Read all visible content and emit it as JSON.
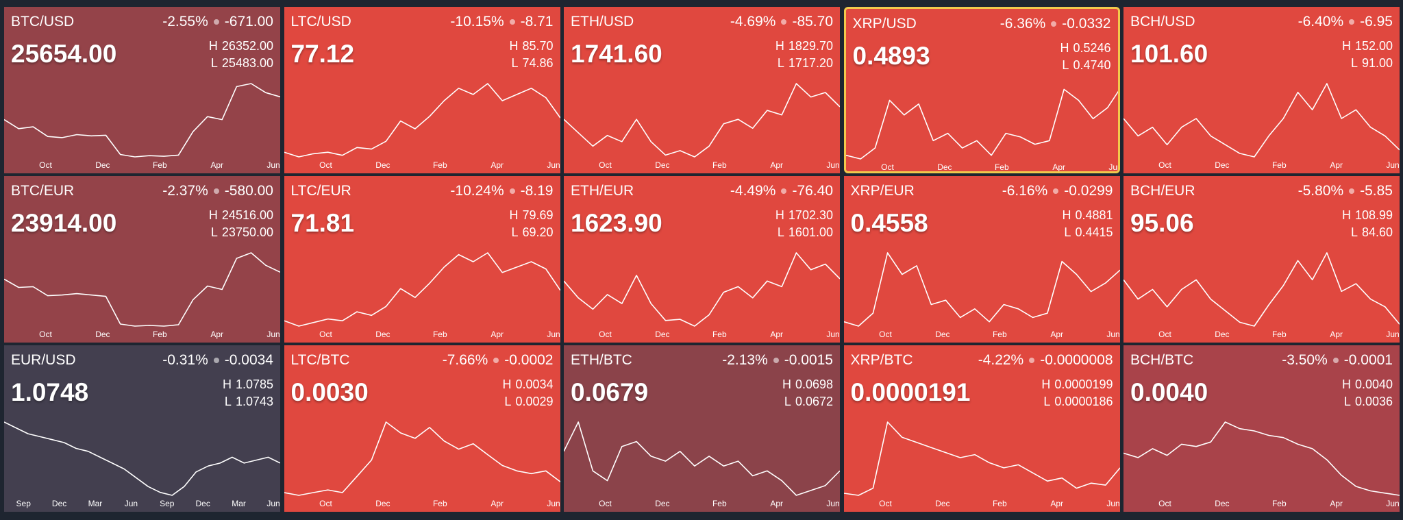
{
  "labels": {
    "high": "H",
    "low": "L"
  },
  "selected_index": 3,
  "tiles": [
    {
      "pair": "BTC/USD",
      "change_pct": "-2.55%",
      "change": "-671.00",
      "price": "25654.00",
      "high": "26352.00",
      "low": "25483.00",
      "color": "#944349",
      "months": [
        "Oct",
        "Dec",
        "Feb",
        "Apr",
        "Jun"
      ],
      "line": [
        23000,
        21500,
        21800,
        20200,
        20000,
        20500,
        20300,
        20400,
        17200,
        16800,
        17000,
        16900,
        17100,
        21000,
        23500,
        23000,
        28500,
        29000,
        27500,
        26800
      ]
    },
    {
      "pair": "LTC/USD",
      "change_pct": "-10.15%",
      "change": "-8.71",
      "price": "77.12",
      "high": "85.70",
      "low": "74.86",
      "color": "#e0483f",
      "months": [
        "Oct",
        "Dec",
        "Feb",
        "Apr",
        "Jun"
      ],
      "line": [
        55,
        52,
        54,
        55,
        53,
        58,
        57,
        62,
        75,
        70,
        78,
        88,
        96,
        92,
        99,
        88,
        92,
        96,
        90,
        77
      ]
    },
    {
      "pair": "ETH/USD",
      "change_pct": "-4.69%",
      "change": "-85.70",
      "price": "1741.60",
      "high": "1829.70",
      "low": "1717.20",
      "color": "#e0483f",
      "months": [
        "Oct",
        "Dec",
        "Feb",
        "Apr",
        "Jun"
      ],
      "line": [
        1600,
        1450,
        1300,
        1420,
        1350,
        1600,
        1350,
        1200,
        1250,
        1180,
        1300,
        1550,
        1600,
        1500,
        1700,
        1650,
        2000,
        1850,
        1900,
        1740
      ]
    },
    {
      "pair": "XRP/USD",
      "change_pct": "-6.36%",
      "change": "-0.0332",
      "price": "0.4893",
      "high": "0.5246",
      "low": "0.4740",
      "color": "#e0483f",
      "months": [
        "Oct",
        "Dec",
        "Feb",
        "Apr",
        "Jun"
      ],
      "line": [
        0.34,
        0.33,
        0.36,
        0.49,
        0.45,
        0.48,
        0.38,
        0.4,
        0.36,
        0.38,
        0.34,
        0.4,
        0.39,
        0.37,
        0.38,
        0.52,
        0.49,
        0.44,
        0.47,
        0.53
      ]
    },
    {
      "pair": "BCH/USD",
      "change_pct": "-6.40%",
      "change": "-6.95",
      "price": "101.60",
      "high": "152.00",
      "low": "91.00",
      "color": "#e0483f",
      "months": [
        "Oct",
        "Dec",
        "Feb",
        "Apr",
        "Jun"
      ],
      "line": [
        120,
        110,
        115,
        105,
        115,
        120,
        110,
        105,
        100,
        98,
        110,
        120,
        135,
        125,
        140,
        120,
        125,
        115,
        110,
        102
      ]
    },
    {
      "pair": "BTC/EUR",
      "change_pct": "-2.37%",
      "change": "-580.00",
      "price": "23914.00",
      "high": "24516.00",
      "low": "23750.00",
      "color": "#944349",
      "months": [
        "Oct",
        "Dec",
        "Feb",
        "Apr",
        "Jun"
      ],
      "line": [
        23000,
        21800,
        21900,
        20600,
        20700,
        20900,
        20700,
        20500,
        16500,
        16200,
        16300,
        16200,
        16400,
        20000,
        22000,
        21500,
        26000,
        26800,
        25000,
        24000
      ]
    },
    {
      "pair": "LTC/EUR",
      "change_pct": "-10.24%",
      "change": "-8.19",
      "price": "71.81",
      "high": "79.69",
      "low": "69.20",
      "color": "#e0483f",
      "months": [
        "Oct",
        "Dec",
        "Feb",
        "Apr",
        "Jun"
      ],
      "line": [
        55,
        52,
        54,
        56,
        55,
        60,
        58,
        63,
        73,
        68,
        76,
        85,
        92,
        88,
        93,
        82,
        85,
        88,
        84,
        72
      ]
    },
    {
      "pair": "ETH/EUR",
      "change_pct": "-4.49%",
      "change": "-76.40",
      "price": "1623.90",
      "high": "1702.30",
      "low": "1601.00",
      "color": "#e0483f",
      "months": [
        "Oct",
        "Dec",
        "Feb",
        "Apr",
        "Jun"
      ],
      "line": [
        1600,
        1450,
        1350,
        1480,
        1400,
        1650,
        1400,
        1250,
        1260,
        1200,
        1300,
        1500,
        1550,
        1450,
        1600,
        1550,
        1850,
        1700,
        1750,
        1620
      ]
    },
    {
      "pair": "XRP/EUR",
      "change_pct": "-6.16%",
      "change": "-0.0299",
      "price": "0.4558",
      "high": "0.4881",
      "low": "0.4415",
      "color": "#e0483f",
      "months": [
        "Oct",
        "Dec",
        "Feb",
        "Apr",
        "Jun"
      ],
      "line": [
        0.34,
        0.33,
        0.36,
        0.5,
        0.45,
        0.47,
        0.38,
        0.39,
        0.35,
        0.37,
        0.34,
        0.38,
        0.37,
        0.35,
        0.36,
        0.48,
        0.45,
        0.41,
        0.43,
        0.46
      ]
    },
    {
      "pair": "BCH/EUR",
      "change_pct": "-5.80%",
      "change": "-5.85",
      "price": "95.06",
      "high": "108.99",
      "low": "84.60",
      "color": "#e0483f",
      "months": [
        "Oct",
        "Dec",
        "Feb",
        "Apr",
        "Jun"
      ],
      "line": [
        118,
        108,
        113,
        104,
        113,
        118,
        108,
        102,
        96,
        94,
        105,
        115,
        128,
        118,
        132,
        112,
        116,
        108,
        104,
        95
      ]
    },
    {
      "pair": "EUR/USD",
      "change_pct": "-0.31%",
      "change": "-0.0034",
      "price": "1.0748",
      "high": "1.0785",
      "low": "1.0743",
      "color": "#433f4f",
      "months": [
        "Sep",
        "Dec",
        "Mar",
        "Jun",
        "Sep",
        "Dec",
        "Mar",
        "Jun"
      ],
      "line": [
        1.22,
        1.2,
        1.18,
        1.17,
        1.16,
        1.15,
        1.13,
        1.12,
        1.1,
        1.08,
        1.06,
        1.03,
        1.0,
        0.98,
        0.97,
        1.0,
        1.05,
        1.07,
        1.08,
        1.1,
        1.08,
        1.09,
        1.1,
        1.08
      ]
    },
    {
      "pair": "LTC/BTC",
      "change_pct": "-7.66%",
      "change": "-0.0002",
      "price": "0.0030",
      "high": "0.0034",
      "low": "0.0029",
      "color": "#e0483f",
      "months": [
        "Oct",
        "Dec",
        "Feb",
        "Apr",
        "Jun"
      ],
      "line": [
        0.0026,
        0.0025,
        0.0026,
        0.0027,
        0.0026,
        0.0032,
        0.0038,
        0.0052,
        0.0048,
        0.0046,
        0.005,
        0.0045,
        0.0042,
        0.0044,
        0.004,
        0.0036,
        0.0034,
        0.0033,
        0.0034,
        0.003
      ]
    },
    {
      "pair": "ETH/BTC",
      "change_pct": "-2.13%",
      "change": "-0.0015",
      "price": "0.0679",
      "high": "0.0698",
      "low": "0.0672",
      "color": "#8b434a",
      "months": [
        "Oct",
        "Dec",
        "Feb",
        "Apr",
        "Jun"
      ],
      "line": [
        0.072,
        0.078,
        0.068,
        0.066,
        0.073,
        0.074,
        0.071,
        0.07,
        0.072,
        0.069,
        0.071,
        0.069,
        0.07,
        0.067,
        0.068,
        0.066,
        0.063,
        0.064,
        0.065,
        0.068
      ]
    },
    {
      "pair": "XRP/BTC",
      "change_pct": "-4.22%",
      "change": "-0.0000008",
      "price": "0.0000191",
      "high": "0.0000199",
      "low": "0.0000186",
      "color": "#e0483f",
      "months": [
        "Oct",
        "Dec",
        "Feb",
        "Apr",
        "Jun"
      ],
      "line": [
        1.6e-05,
        1.58e-05,
        1.65e-05,
        2.3e-05,
        2.15e-05,
        2.1e-05,
        2.05e-05,
        2e-05,
        1.95e-05,
        1.98e-05,
        1.9e-05,
        1.85e-05,
        1.88e-05,
        1.8e-05,
        1.72e-05,
        1.75e-05,
        1.65e-05,
        1.7e-05,
        1.68e-05,
        1.85e-05
      ]
    },
    {
      "pair": "BCH/BTC",
      "change_pct": "-3.50%",
      "change": "-0.0001",
      "price": "0.0040",
      "high": "0.0040",
      "low": "0.0036",
      "color": "#a9434a",
      "months": [
        "Oct",
        "Dec",
        "Feb",
        "Apr",
        "Jun"
      ],
      "line": [
        0.0058,
        0.0056,
        0.006,
        0.0057,
        0.0062,
        0.0061,
        0.0063,
        0.0072,
        0.0069,
        0.0068,
        0.0066,
        0.0065,
        0.0062,
        0.006,
        0.0055,
        0.0048,
        0.0043,
        0.0041,
        0.004,
        0.0039
      ]
    }
  ]
}
